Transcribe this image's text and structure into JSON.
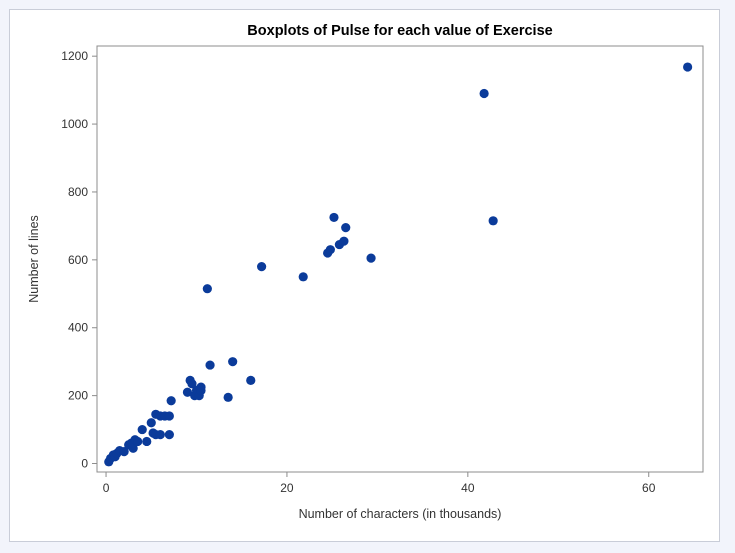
{
  "chart_data": {
    "type": "scatter",
    "title": "Boxplots of Pulse for each value of Exercise",
    "xlabel": "Number of characters (in thousands)",
    "ylabel": "Number of lines",
    "xlim": [
      -1,
      66
    ],
    "ylim": [
      -25,
      1230
    ],
    "xticks": [
      0,
      20,
      40,
      60
    ],
    "yticks": [
      0,
      200,
      400,
      600,
      800,
      1000,
      1200
    ],
    "marker_color": "#0b3b9a",
    "grid": false,
    "series": [
      {
        "x": [
          0.3,
          0.5,
          0.8,
          1.0,
          1.2,
          1.5,
          2.0,
          2.5,
          2.8,
          3.0,
          3.2,
          3.5,
          4.0,
          4.5,
          5.0,
          5.2,
          5.5,
          5.5,
          6.0,
          6.0,
          6.5,
          7.0,
          7.0,
          7.2,
          9.0,
          9.3,
          9.5,
          9.8,
          10.0,
          10.3,
          10.5,
          10.5,
          11.2,
          11.5,
          13.5,
          14.0,
          16.0,
          17.2,
          21.8,
          24.5,
          24.8,
          25.2,
          25.8,
          26.3,
          26.5,
          29.3,
          41.8,
          42.8,
          64.3
        ],
        "y": [
          5,
          15,
          25,
          20,
          30,
          38,
          35,
          55,
          60,
          45,
          70,
          65,
          100,
          65,
          120,
          90,
          145,
          85,
          85,
          140,
          140,
          140,
          85,
          185,
          210,
          245,
          235,
          200,
          215,
          200,
          225,
          215,
          515,
          290,
          195,
          300,
          245,
          580,
          550,
          620,
          630,
          725,
          645,
          655,
          695,
          605,
          1090,
          715,
          1168
        ]
      }
    ]
  }
}
